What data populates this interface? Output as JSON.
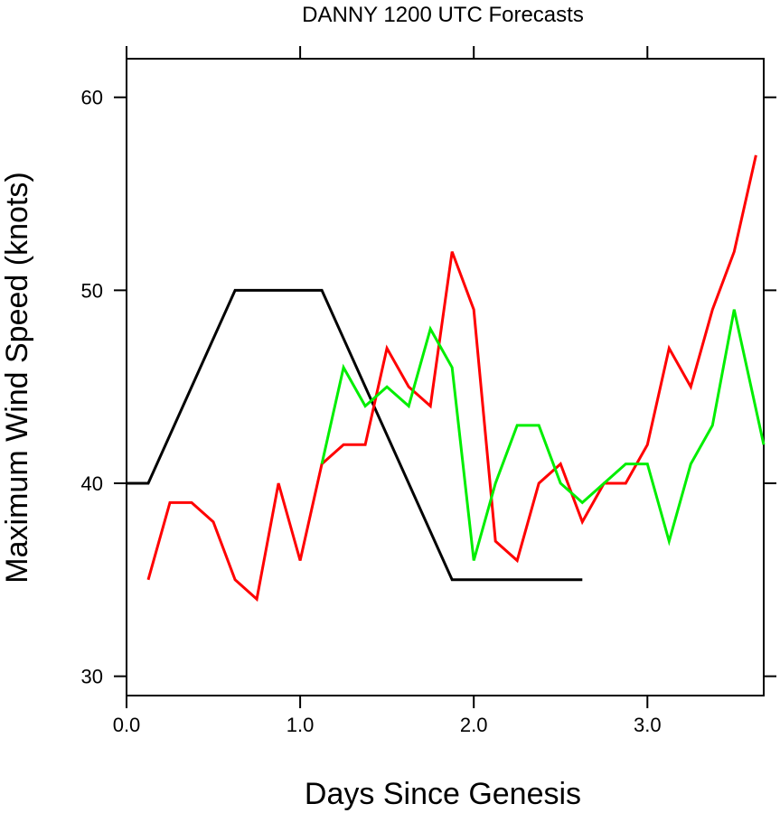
{
  "chart_data": {
    "type": "line",
    "title": "DANNY 1200 UTC Forecasts",
    "xlabel": "Days Since Genesis",
    "ylabel": "Maximum Wind Speed (knots)",
    "xlim": [
      0.0,
      3.67
    ],
    "ylim": [
      29.0,
      62.0
    ],
    "xticks": [
      0.0,
      1.0,
      2.0,
      3.0
    ],
    "xtick_labels": [
      "0.0",
      "1.0",
      "2.0",
      "3.0"
    ],
    "yticks": [
      30,
      40,
      50,
      60
    ],
    "ytick_labels": [
      "30",
      "40",
      "50",
      "60"
    ],
    "grid": false,
    "series": [
      {
        "color": "#000000",
        "x": [
          0.0,
          0.125,
          0.625,
          1.125,
          1.875,
          2.625
        ],
        "y": [
          40,
          40,
          50,
          50,
          35,
          35
        ]
      },
      {
        "color": "#ff0000",
        "x": [
          0.125,
          0.25,
          0.375,
          0.5,
          0.625,
          0.75,
          0.875,
          1.0,
          1.125,
          1.25,
          1.375,
          1.5,
          1.625,
          1.75,
          1.875,
          2.0,
          2.125,
          2.25,
          2.375,
          2.5,
          2.625,
          2.75,
          2.875,
          3.0,
          3.125,
          3.25,
          3.375,
          3.5,
          3.625
        ],
        "y": [
          35,
          39,
          39,
          38,
          35,
          34,
          40,
          36,
          41,
          42,
          42,
          47,
          45,
          44,
          52,
          49,
          37,
          36,
          40,
          41,
          38,
          40,
          40,
          42,
          47,
          45,
          49,
          52,
          57
        ]
      },
      {
        "color": "#00ee00",
        "x": [
          1.125,
          1.25,
          1.375,
          1.5,
          1.625,
          1.75,
          1.875,
          2.0,
          2.125,
          2.25,
          2.375,
          2.5,
          2.625,
          2.75,
          2.875,
          3.0,
          3.125,
          3.25,
          3.375,
          3.5,
          3.67
        ],
        "y": [
          41,
          46,
          44,
          45,
          44,
          48,
          46,
          36,
          40,
          43,
          43,
          40,
          39,
          40,
          41,
          41,
          37,
          41,
          43,
          49,
          42
        ]
      }
    ]
  }
}
